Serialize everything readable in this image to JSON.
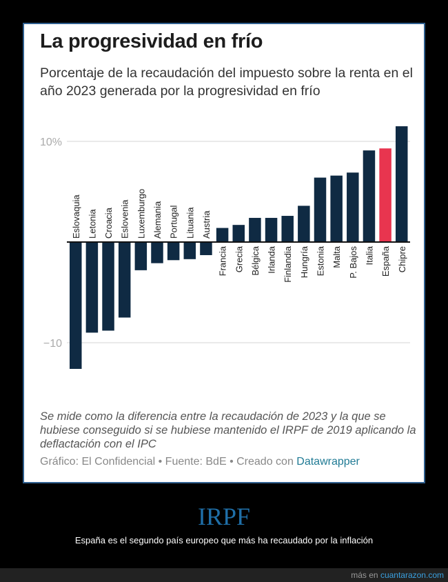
{
  "card": {
    "title": "La progresividad en frío",
    "subtitle": "Porcentaje de la recaudación del impuesto sobre la renta en el año 2023 generada por la progresividad en frío",
    "note": "Se mide como la diferencia entre la recaudación de 2023 y la que se hubiese conseguido si se hubiese mantenido el IRPF de 2019 aplicando la deflactación con el IPC",
    "credit_prefix": "Gráfico: El Confidencial • Fuente: BdE • Creado con ",
    "credit_link": "Datawrapper"
  },
  "chart_data": {
    "type": "bar",
    "ylim": [
      -13,
      12
    ],
    "yticks": [
      {
        "value": 10,
        "label": "10%"
      },
      {
        "value": -10,
        "label": "−10"
      }
    ],
    "grid": true,
    "categories": [
      "Eslovaquia",
      "Letonia",
      "Croacia",
      "Eslovenia",
      "Luxemburgo",
      "Alemania",
      "Portugal",
      "Lituania",
      "Austria",
      "Francia",
      "Grecia",
      "Bélgica",
      "Irlanda",
      "Finlandia",
      "Hungría",
      "Estonia",
      "Malta",
      "P. Bajos",
      "Italia",
      "España",
      "Chipre"
    ],
    "values": [
      -12.6,
      -9.0,
      -8.8,
      -7.5,
      -2.8,
      -2.1,
      -1.8,
      -1.7,
      -1.3,
      1.4,
      1.7,
      2.4,
      2.4,
      2.6,
      3.6,
      6.4,
      6.6,
      6.9,
      9.1,
      9.3,
      11.5
    ],
    "colors": {
      "default": "#0f2a43",
      "highlight": "#e8354f"
    },
    "highlight": "España"
  },
  "footer": {
    "heading": "IRPF",
    "caption": "España es el segundo país europeo que más ha recaudado por la inflación",
    "more_prefix": "más en ",
    "more_link": "cuantarazon.com"
  }
}
